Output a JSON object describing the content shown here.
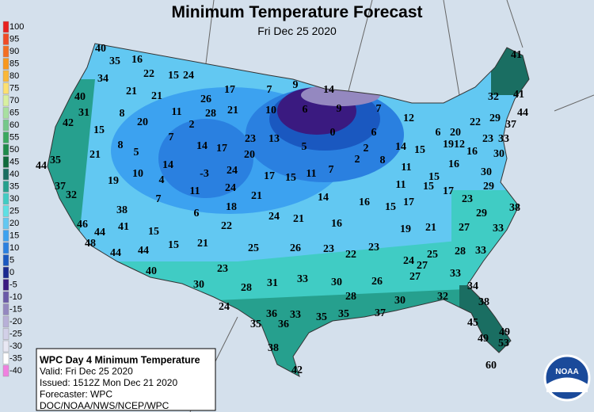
{
  "header": {
    "title": "Minimum Temperature Forecast",
    "subtitle": "Fri Dec 25 2020"
  },
  "legend": [
    {
      "value": 100,
      "color": "#e8201e"
    },
    {
      "value": 95,
      "color": "#f04a26"
    },
    {
      "value": 90,
      "color": "#f46e22"
    },
    {
      "value": 85,
      "color": "#f8981e"
    },
    {
      "value": 80,
      "color": "#fbb838"
    },
    {
      "value": 75,
      "color": "#fde070"
    },
    {
      "value": 70,
      "color": "#d8f0a0"
    },
    {
      "value": 65,
      "color": "#a8e0a0"
    },
    {
      "value": 60,
      "color": "#74c88a"
    },
    {
      "value": 55,
      "color": "#3aa860"
    },
    {
      "value": 50,
      "color": "#1e8a4a"
    },
    {
      "value": 45,
      "color": "#106a3c"
    },
    {
      "value": 40,
      "color": "#1a6e62"
    },
    {
      "value": 35,
      "color": "#26a08e"
    },
    {
      "value": 30,
      "color": "#40ccc4"
    },
    {
      "value": 25,
      "color": "#5ee0e4"
    },
    {
      "value": 20,
      "color": "#62c8f2"
    },
    {
      "value": 15,
      "color": "#3ca2f0"
    },
    {
      "value": 10,
      "color": "#2a80e0"
    },
    {
      "value": 5,
      "color": "#1a58c0"
    },
    {
      "value": 0,
      "color": "#1a2a90"
    },
    {
      "value": -5,
      "color": "#3a1a80"
    },
    {
      "value": -10,
      "color": "#6a5aa8"
    },
    {
      "value": -15,
      "color": "#9488c0"
    },
    {
      "value": -20,
      "color": "#b8b0d8"
    },
    {
      "value": -25,
      "color": "#d2d0e8"
    },
    {
      "value": -30,
      "color": "#e8e8f4"
    },
    {
      "value": -35,
      "color": "#ffffff"
    },
    {
      "value": -40,
      "color": "#f080e0"
    }
  ],
  "info": [
    "WPC Day 4 Minimum Temperature",
    "Valid: Fri Dec 25 2020",
    "Issued: 1512Z Mon Dec 21 2020",
    "Forecaster: WPC",
    "DOC/NOAA/NWS/NCEP/WPC"
  ],
  "logo": "NOAA",
  "labels": [
    40,
    35,
    16,
    34,
    22,
    15,
    24,
    21,
    21,
    17,
    7,
    9,
    14,
    40,
    26,
    31,
    8,
    11,
    28,
    21,
    10,
    6,
    9,
    7,
    42,
    20,
    2,
    12,
    0,
    6,
    6,
    20,
    22,
    29,
    37,
    44,
    41,
    32,
    41,
    15,
    7,
    23,
    13,
    8,
    5,
    14,
    17,
    5,
    2,
    14,
    15,
    19,
    12,
    16,
    23,
    33,
    21,
    20,
    2,
    8,
    30,
    44,
    35,
    14,
    24,
    17,
    15,
    11,
    7,
    11,
    15,
    16,
    30,
    10,
    4,
    -3,
    19,
    37,
    11,
    24,
    21,
    14,
    16,
    15,
    17,
    11,
    15,
    17,
    23,
    29,
    32,
    7,
    18,
    38,
    6,
    24,
    21,
    29,
    38,
    46,
    41,
    22,
    16,
    19,
    21,
    27,
    33,
    44,
    15,
    48,
    21,
    25,
    26,
    23,
    22,
    23,
    28,
    33,
    44,
    44,
    15,
    25,
    24,
    27,
    40,
    23,
    27,
    33,
    34,
    30,
    28,
    31,
    33,
    30,
    26,
    32,
    38,
    28,
    30,
    24,
    33,
    36,
    35,
    35,
    37,
    45,
    35,
    36,
    49,
    49,
    53,
    38,
    60,
    42
  ]
}
